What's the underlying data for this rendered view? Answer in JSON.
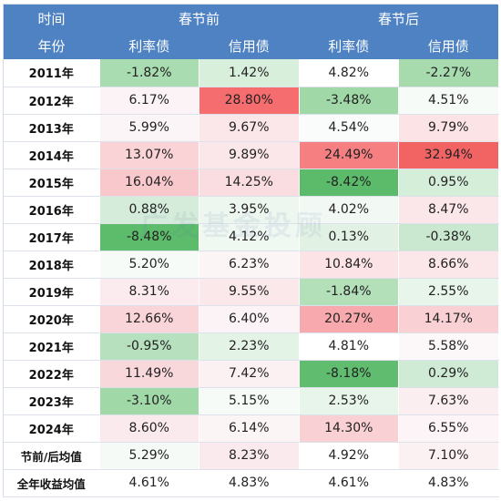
{
  "header": {
    "row1": [
      "时间",
      "",
      "春节前",
      "",
      "春节后",
      ""
    ],
    "row2": [
      "年份",
      "利率债",
      "信用债",
      "利率债",
      "信用债"
    ]
  },
  "rows": [
    {
      "year": "2011年",
      "cells": [
        {
          "v": "-1.82%",
          "bg": "#a9dcb0"
        },
        {
          "v": "1.42%",
          "bg": "#d8efdc"
        },
        {
          "v": "4.82%",
          "bg": "#ffffff"
        },
        {
          "v": "-2.27%",
          "bg": "#a7dbae"
        }
      ]
    },
    {
      "year": "2012年",
      "cells": [
        {
          "v": "6.17%",
          "bg": "#fbf3f5"
        },
        {
          "v": "28.80%",
          "bg": "#f56d6f"
        },
        {
          "v": "-3.48%",
          "bg": "#a0d8a8"
        },
        {
          "v": "4.51%",
          "bg": "#f7fbf8"
        }
      ]
    },
    {
      "year": "2013年",
      "cells": [
        {
          "v": "5.99%",
          "bg": "#fcf5f7"
        },
        {
          "v": "9.67%",
          "bg": "#fbe7ea"
        },
        {
          "v": "4.54%",
          "bg": "#f9fcfa"
        },
        {
          "v": "9.79%",
          "bg": "#fbe3e6"
        }
      ]
    },
    {
      "year": "2014年",
      "cells": [
        {
          "v": "13.07%",
          "bg": "#f9d3d6"
        },
        {
          "v": "9.89%",
          "bg": "#fbe6e9"
        },
        {
          "v": "24.49%",
          "bg": "#f57f81"
        },
        {
          "v": "32.94%",
          "bg": "#f26364"
        }
      ]
    },
    {
      "year": "2015年",
      "cells": [
        {
          "v": "16.04%",
          "bg": "#f8c8cc"
        },
        {
          "v": "14.25%",
          "bg": "#faddE0"
        },
        {
          "v": "-8.42%",
          "bg": "#5cbb6b"
        },
        {
          "v": "0.95%",
          "bg": "#d5eeda"
        }
      ]
    },
    {
      "year": "2016年",
      "cells": [
        {
          "v": "0.88%",
          "bg": "#d4ecd9"
        },
        {
          "v": "3.95%",
          "bg": "#edf7ef"
        },
        {
          "v": "4.02%",
          "bg": "#f2f9f4"
        },
        {
          "v": "8.47%",
          "bg": "#fbe7ea"
        }
      ]
    },
    {
      "year": "2017年",
      "cells": [
        {
          "v": "-8.48%",
          "bg": "#5dbb6c"
        },
        {
          "v": "4.12%",
          "bg": "#f0f8f2"
        },
        {
          "v": "0.13%",
          "bg": "#e1f2e4"
        },
        {
          "v": "-0.38%",
          "bg": "#c9e8cf"
        }
      ]
    },
    {
      "year": "2018年",
      "cells": [
        {
          "v": "5.20%",
          "bg": "#f6fbf7"
        },
        {
          "v": "6.23%",
          "bg": "#fbf5f6"
        },
        {
          "v": "10.84%",
          "bg": "#fbe3e6"
        },
        {
          "v": "8.66%",
          "bg": "#fbe6e9"
        }
      ]
    },
    {
      "year": "2019年",
      "cells": [
        {
          "v": "8.31%",
          "bg": "#fbebee"
        },
        {
          "v": "9.55%",
          "bg": "#fbe8eb"
        },
        {
          "v": "-1.84%",
          "bg": "#b3dfb9"
        },
        {
          "v": "2.55%",
          "bg": "#e8f5eb"
        }
      ]
    },
    {
      "year": "2020年",
      "cells": [
        {
          "v": "12.66%",
          "bg": "#f9d4d8"
        },
        {
          "v": "6.40%",
          "bg": "#fbf3f5"
        },
        {
          "v": "20.27%",
          "bg": "#f7a9ad"
        },
        {
          "v": "14.17%",
          "bg": "#f9d1d5"
        }
      ]
    },
    {
      "year": "2021年",
      "cells": [
        {
          "v": "-0.95%",
          "bg": "#b7e0be"
        },
        {
          "v": "2.23%",
          "bg": "#e3f3e6"
        },
        {
          "v": "4.81%",
          "bg": "#ffffff"
        },
        {
          "v": "5.58%",
          "bg": "#fcf7f8"
        }
      ]
    },
    {
      "year": "2022年",
      "cells": [
        {
          "v": "11.49%",
          "bg": "#f9d8dc"
        },
        {
          "v": "7.42%",
          "bg": "#fbf0f2"
        },
        {
          "v": "-8.18%",
          "bg": "#60bd6f"
        },
        {
          "v": "0.29%",
          "bg": "#d0ebd5"
        }
      ]
    },
    {
      "year": "2023年",
      "cells": [
        {
          "v": "-3.10%",
          "bg": "#a0d8a8"
        },
        {
          "v": "5.15%",
          "bg": "#f6fbf7"
        },
        {
          "v": "2.53%",
          "bg": "#e8f5eb"
        },
        {
          "v": "7.63%",
          "bg": "#fbeef0"
        }
      ]
    },
    {
      "year": "2024年",
      "cells": [
        {
          "v": "8.60%",
          "bg": "#fbeaed"
        },
        {
          "v": "6.14%",
          "bg": "#fbf5f6"
        },
        {
          "v": "14.30%",
          "bg": "#f9d0d4"
        },
        {
          "v": "6.55%",
          "bg": "#fcf4f6"
        }
      ]
    }
  ],
  "summary": [
    {
      "label": "节前/后均值",
      "cells": [
        {
          "v": "5.29%",
          "bg": "#f5faf6"
        },
        {
          "v": "8.23%",
          "bg": "#fbeaed"
        },
        {
          "v": "4.92%",
          "bg": "#ffffff"
        },
        {
          "v": "7.10%",
          "bg": "#fbf0f2"
        }
      ]
    },
    {
      "label": "全年收益均值",
      "cells": [
        {
          "v": "4.61%",
          "bg": "#ffffff"
        },
        {
          "v": "4.83%",
          "bg": "#ffffff"
        },
        {
          "v": "4.61%",
          "bg": "#ffffff"
        },
        {
          "v": "4.83%",
          "bg": "#ffffff"
        }
      ]
    }
  ],
  "watermark": "广发基金投顾",
  "colors": {
    "header_bg": "#4e82c2",
    "positive_high": "#f26364",
    "negative_high": "#5cbb6b"
  }
}
